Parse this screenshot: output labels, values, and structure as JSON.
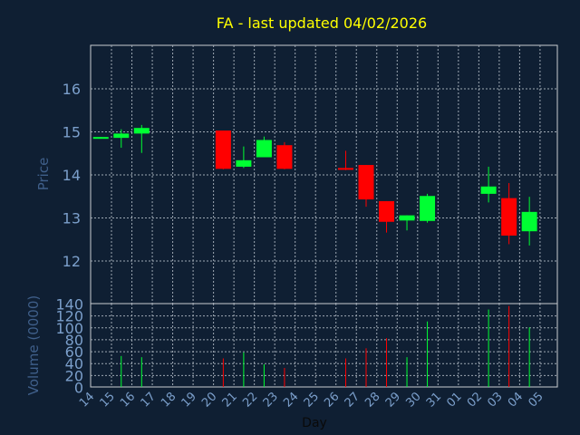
{
  "colors": {
    "background": "#0f1f33",
    "title": "#ffff00",
    "axis_text": "#7b9fcb",
    "axis_title": "#3f5f8a",
    "grid": "#9ea8b3",
    "up": "#00ff33",
    "down": "#ff0000",
    "frame": "#c8ccd2"
  },
  "chart_data": [
    {
      "type": "candlestick",
      "title": "FA - last updated 04/02/2026",
      "ylabel": "Price",
      "ylim": [
        11,
        17
      ],
      "yticks": [
        12,
        13,
        14,
        15,
        16
      ],
      "grid": true,
      "candles": [
        {
          "day": "14",
          "open": 14.85,
          "high": 14.87,
          "low": 14.83,
          "close": 14.87
        },
        {
          "day": "15",
          "open": 14.85,
          "high": 15.05,
          "low": 14.62,
          "close": 14.95
        },
        {
          "day": "16",
          "open": 14.95,
          "high": 15.15,
          "low": 14.5,
          "close": 15.08
        },
        {
          "day": "20",
          "open": 15.02,
          "high": 15.02,
          "low": 14.12,
          "close": 14.13
        },
        {
          "day": "21",
          "open": 14.18,
          "high": 14.65,
          "low": 14.15,
          "close": 14.33
        },
        {
          "day": "22",
          "open": 14.4,
          "high": 14.88,
          "low": 14.4,
          "close": 14.8
        },
        {
          "day": "23",
          "open": 14.68,
          "high": 14.75,
          "low": 14.12,
          "close": 14.13
        },
        {
          "day": "26",
          "open": 14.15,
          "high": 14.55,
          "low": 14.1,
          "close": 14.12
        },
        {
          "day": "27",
          "open": 14.22,
          "high": 14.22,
          "low": 13.25,
          "close": 13.42
        },
        {
          "day": "28",
          "open": 13.38,
          "high": 13.38,
          "low": 12.65,
          "close": 12.9
        },
        {
          "day": "29",
          "open": 12.93,
          "high": 13.05,
          "low": 12.7,
          "close": 13.05
        },
        {
          "day": "30",
          "open": 12.92,
          "high": 13.55,
          "low": 12.88,
          "close": 13.5
        },
        {
          "day": "02",
          "open": 13.55,
          "high": 14.18,
          "low": 13.35,
          "close": 13.72
        },
        {
          "day": "03",
          "open": 13.45,
          "high": 13.8,
          "low": 12.38,
          "close": 12.58
        },
        {
          "day": "04",
          "open": 12.68,
          "high": 13.48,
          "low": 12.35,
          "close": 13.13
        }
      ]
    },
    {
      "type": "bar",
      "ylabel": "Volume (0000)",
      "xlabel": "Day",
      "ylim": [
        0,
        140
      ],
      "yticks": [
        0,
        20,
        40,
        60,
        80,
        100,
        120,
        140
      ],
      "grid": true,
      "categories": [
        "14",
        "15",
        "16",
        "17",
        "18",
        "19",
        "20",
        "21",
        "22",
        "23",
        "24",
        "25",
        "26",
        "27",
        "28",
        "29",
        "30",
        "31",
        "01",
        "02",
        "03",
        "04",
        "05"
      ],
      "values": [
        0,
        52,
        50,
        0,
        0,
        0,
        48,
        58,
        38,
        32,
        0,
        0,
        48,
        65,
        82,
        50,
        110,
        0,
        0,
        130,
        136,
        100,
        0
      ],
      "up": [
        true,
        true,
        true,
        true,
        true,
        true,
        false,
        true,
        true,
        false,
        true,
        true,
        false,
        false,
        false,
        true,
        true,
        true,
        true,
        true,
        false,
        true,
        true
      ]
    }
  ]
}
